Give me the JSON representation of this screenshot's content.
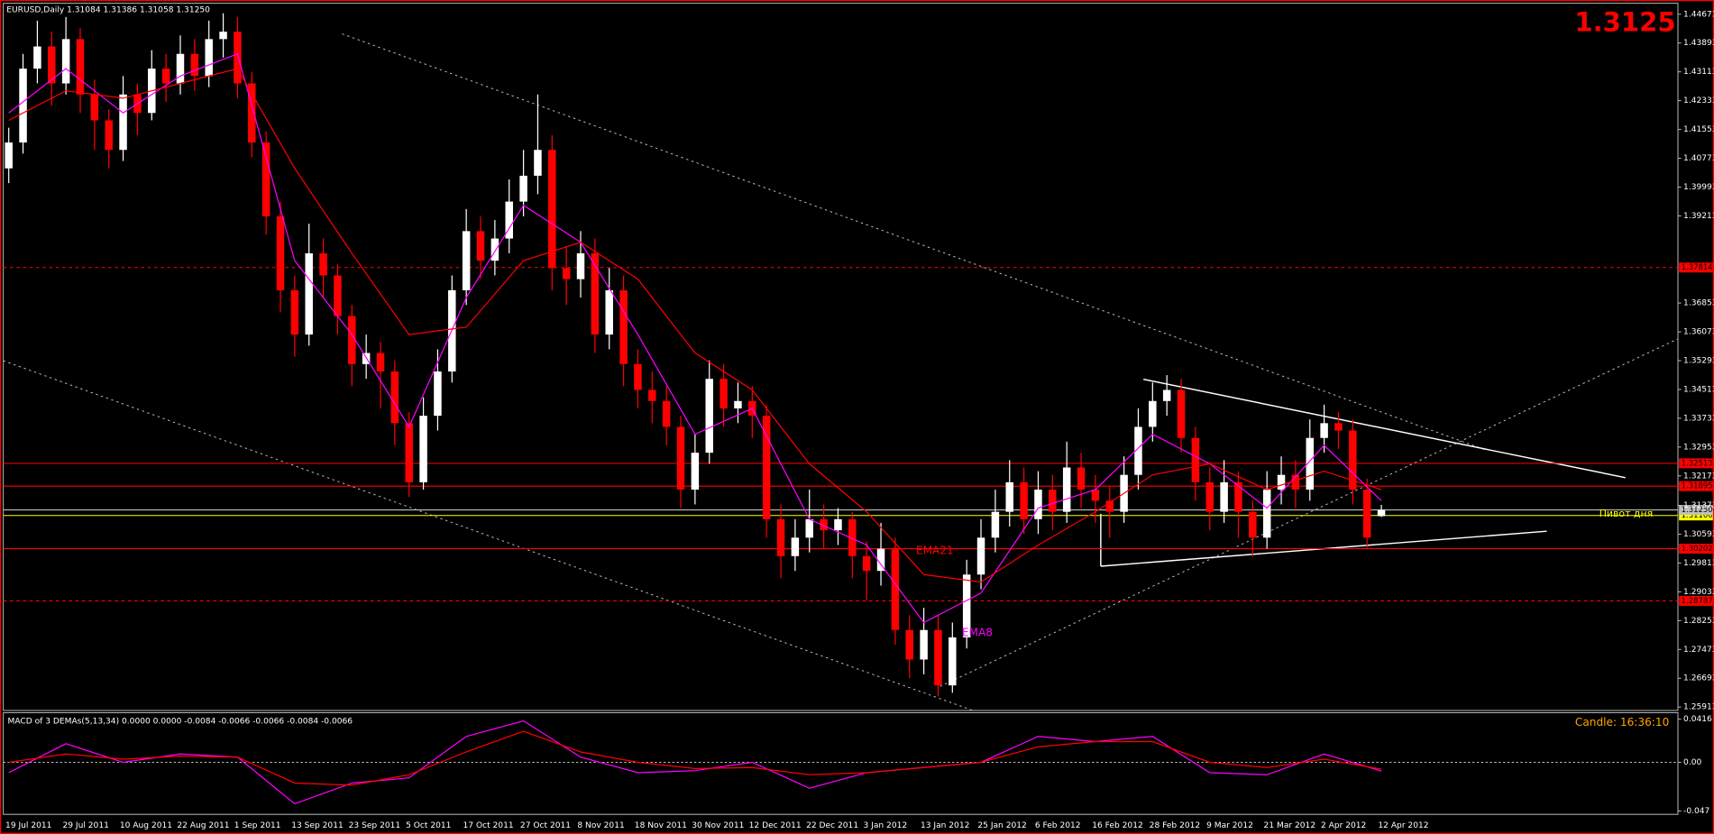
{
  "chart_data": {
    "type": "candlestick",
    "title": "EURUSD,Daily  1.31084 1.31386 1.31058 1.31250",
    "big_price": 1.3125,
    "candle_timer": "Candle:  16:36:10",
    "categories": [
      "19 Jul 2011",
      null,
      null,
      null,
      "29 Jul 2011",
      null,
      null,
      null,
      "10 Aug 2011",
      null,
      null,
      null,
      "22 Aug 2011",
      null,
      null,
      null,
      "1 Sep 2011",
      null,
      null,
      null,
      "13 Sep 2011",
      null,
      null,
      null,
      "23 Sep 2011",
      null,
      null,
      null,
      "5 Oct 2011",
      null,
      null,
      null,
      "17 Oct 2011",
      null,
      null,
      null,
      "27 Oct 2011",
      null,
      null,
      null,
      "8 Nov 2011",
      null,
      null,
      null,
      "18 Nov 2011",
      null,
      null,
      null,
      "30 Nov 2011",
      null,
      null,
      null,
      "12 Dec 2011",
      null,
      null,
      null,
      "22 Dec 2011",
      null,
      null,
      null,
      "3 Jan 2012",
      null,
      null,
      null,
      "13 Jan 2012",
      null,
      null,
      null,
      "25 Jan 2012",
      null,
      null,
      null,
      "6 Feb 2012",
      null,
      null,
      null,
      "16 Feb 2012",
      null,
      null,
      null,
      "28 Feb 2012",
      null,
      null,
      null,
      "9 Mar 2012",
      null,
      null,
      null,
      "21 Mar 2012",
      null,
      null,
      null,
      "2 Apr 2012",
      null,
      null,
      null,
      "12 Apr 2012"
    ],
    "open": [
      1.405,
      1.412,
      1.432,
      1.438,
      1.428,
      1.44,
      1.425,
      1.418,
      1.41,
      1.425,
      1.42,
      1.432,
      1.428,
      1.436,
      1.43,
      1.44,
      1.442,
      1.428,
      1.412,
      1.392,
      1.372,
      1.36,
      1.382,
      1.376,
      1.365,
      1.352,
      1.355,
      1.35,
      1.336,
      1.32,
      1.338,
      1.35,
      1.372,
      1.388,
      1.38,
      1.386,
      1.396,
      1.403,
      1.41,
      1.378,
      1.375,
      1.382,
      1.36,
      1.372,
      1.352,
      1.345,
      1.342,
      1.335,
      1.318,
      1.328,
      1.348,
      1.34,
      1.342,
      1.338,
      1.31,
      1.3,
      1.305,
      1.31,
      1.307,
      1.31,
      1.3,
      1.296,
      1.302,
      1.28,
      1.272,
      1.28,
      1.265,
      1.278,
      1.295,
      1.305,
      1.312,
      1.32,
      1.31,
      1.318,
      1.312,
      1.324,
      1.318,
      1.315,
      1.312,
      1.322,
      1.335,
      1.342,
      1.345,
      1.332,
      1.32,
      1.312,
      1.32,
      1.312,
      1.305,
      1.318,
      1.322,
      1.318,
      1.332,
      1.336,
      1.334,
      1.318,
      1.31084
    ],
    "high": [
      1.416,
      1.436,
      1.445,
      1.442,
      1.446,
      1.443,
      1.429,
      1.421,
      1.43,
      1.428,
      1.437,
      1.436,
      1.441,
      1.44,
      1.445,
      1.447,
      1.446,
      1.431,
      1.415,
      1.396,
      1.376,
      1.39,
      1.386,
      1.379,
      1.368,
      1.36,
      1.358,
      1.353,
      1.339,
      1.343,
      1.356,
      1.376,
      1.394,
      1.392,
      1.391,
      1.402,
      1.41,
      1.425,
      1.414,
      1.384,
      1.388,
      1.386,
      1.378,
      1.376,
      1.356,
      1.35,
      1.346,
      1.338,
      1.333,
      1.353,
      1.352,
      1.347,
      1.346,
      1.341,
      1.314,
      1.31,
      1.318,
      1.314,
      1.313,
      1.312,
      1.304,
      1.309,
      1.305,
      1.284,
      1.286,
      1.284,
      1.282,
      1.299,
      1.31,
      1.318,
      1.326,
      1.324,
      1.323,
      1.322,
      1.331,
      1.328,
      1.322,
      1.319,
      1.327,
      1.34,
      1.347,
      1.349,
      1.348,
      1.335,
      1.324,
      1.326,
      1.323,
      1.315,
      1.323,
      1.327,
      1.326,
      1.337,
      1.341,
      1.339,
      1.337,
      1.321,
      1.31386
    ],
    "low": [
      1.401,
      1.409,
      1.428,
      1.422,
      1.425,
      1.42,
      1.41,
      1.405,
      1.407,
      1.414,
      1.418,
      1.423,
      1.425,
      1.426,
      1.427,
      1.435,
      1.424,
      1.408,
      1.387,
      1.366,
      1.354,
      1.357,
      1.37,
      1.36,
      1.346,
      1.348,
      1.34,
      1.33,
      1.316,
      1.318,
      1.334,
      1.347,
      1.368,
      1.375,
      1.376,
      1.382,
      1.392,
      1.398,
      1.372,
      1.368,
      1.37,
      1.355,
      1.356,
      1.346,
      1.34,
      1.336,
      1.33,
      1.313,
      1.314,
      1.325,
      1.335,
      1.336,
      1.332,
      1.305,
      1.294,
      1.296,
      1.301,
      1.302,
      1.303,
      1.294,
      1.288,
      1.292,
      1.276,
      1.267,
      1.268,
      1.262,
      1.263,
      1.275,
      1.291,
      1.301,
      1.308,
      1.306,
      1.306,
      1.307,
      1.309,
      1.313,
      1.309,
      1.305,
      1.309,
      1.318,
      1.331,
      1.338,
      1.328,
      1.315,
      1.307,
      1.309,
      1.305,
      1.3,
      1.302,
      1.314,
      1.313,
      1.315,
      1.328,
      1.329,
      1.314,
      1.302,
      1.31058
    ],
    "close": [
      1.412,
      1.432,
      1.438,
      1.428,
      1.44,
      1.425,
      1.418,
      1.41,
      1.425,
      1.42,
      1.432,
      1.428,
      1.436,
      1.43,
      1.44,
      1.442,
      1.428,
      1.412,
      1.392,
      1.372,
      1.36,
      1.382,
      1.376,
      1.365,
      1.352,
      1.355,
      1.35,
      1.336,
      1.32,
      1.338,
      1.35,
      1.372,
      1.388,
      1.38,
      1.386,
      1.396,
      1.403,
      1.41,
      1.378,
      1.375,
      1.382,
      1.36,
      1.372,
      1.352,
      1.345,
      1.342,
      1.335,
      1.318,
      1.328,
      1.348,
      1.34,
      1.342,
      1.338,
      1.31,
      1.3,
      1.305,
      1.31,
      1.307,
      1.31,
      1.3,
      1.296,
      1.302,
      1.28,
      1.272,
      1.28,
      1.265,
      1.278,
      1.295,
      1.305,
      1.312,
      1.32,
      1.31,
      1.318,
      1.312,
      1.324,
      1.318,
      1.315,
      1.312,
      1.322,
      1.335,
      1.342,
      1.345,
      1.332,
      1.32,
      1.312,
      1.32,
      1.312,
      1.305,
      1.318,
      1.322,
      1.318,
      1.332,
      1.336,
      1.334,
      1.318,
      1.305,
      1.3125
    ],
    "up_color": "#ffffff",
    "down_color": "#ff0000",
    "ylim": [
      1.2582,
      1.4497
    ],
    "yticks": [
      1.44673,
      1.43893,
      1.43113,
      1.42333,
      1.41553,
      1.40773,
      1.39993,
      1.39213,
      1.36853,
      1.36073,
      1.35293,
      1.34513,
      1.33733,
      1.32953,
      1.32173,
      1.31373,
      1.30593,
      1.29813,
      1.29033,
      1.28253,
      1.27473,
      1.26693,
      1.25913
    ],
    "overlays": [
      {
        "name": "EMA8",
        "color": "#ff00ff",
        "x": [
          0,
          4,
          8,
          12,
          16,
          20,
          24,
          28,
          32,
          36,
          40,
          44,
          48,
          52,
          56,
          60,
          64,
          68,
          72,
          76,
          80,
          84,
          88,
          92,
          96
        ],
        "values": [
          1.42,
          1.432,
          1.42,
          1.43,
          1.436,
          1.38,
          1.36,
          1.335,
          1.37,
          1.395,
          1.385,
          1.36,
          1.333,
          1.34,
          1.31,
          1.303,
          1.282,
          1.29,
          1.313,
          1.318,
          1.333,
          1.325,
          1.313,
          1.33,
          1.315
        ]
      },
      {
        "name": "EMA21",
        "color": "#ff0000",
        "x": [
          0,
          4,
          8,
          12,
          16,
          20,
          24,
          28,
          32,
          36,
          40,
          44,
          48,
          52,
          56,
          60,
          64,
          68,
          72,
          76,
          80,
          84,
          88,
          92,
          96
        ],
        "values": [
          1.418,
          1.426,
          1.424,
          1.428,
          1.432,
          1.405,
          1.382,
          1.36,
          1.362,
          1.38,
          1.385,
          1.375,
          1.355,
          1.345,
          1.325,
          1.312,
          1.295,
          1.293,
          1.303,
          1.312,
          1.322,
          1.325,
          1.318,
          1.323,
          1.318
        ]
      }
    ],
    "levels": [
      {
        "value": 1.37814,
        "label": "1.37814",
        "color": "#ff0000",
        "dashed": true
      },
      {
        "value": 1.32513,
        "label": "1.32513",
        "color": "#ff0000",
        "dashed": false
      },
      {
        "value": 1.31895,
        "label": "1.31895",
        "color": "#ff0000",
        "dashed": false
      },
      {
        "value": 1.311,
        "label": "1.31100",
        "color": "#ffff00",
        "dashed": false,
        "name": "Пивот дня"
      },
      {
        "value": 1.3125,
        "label": "1.31250",
        "color": "#c0c0c0",
        "dashed": false
      },
      {
        "value": 1.30202,
        "label": "1.30202",
        "color": "#ff0000",
        "dashed": false
      },
      {
        "value": 1.28787,
        "label": "1.28787",
        "color": "#ff0000",
        "dashed": true
      }
    ],
    "macd": {
      "title": "MACD of 3 DEMAs(5,13,34) 0.0000 0.0000 -0.0084 -0.0066 -0.0066 -0.0084 -0.0066",
      "ylim": [
        -0.0502,
        0.0479
      ],
      "yticks": [
        0.0416,
        {
          "value": 0,
          "label": "0.00"
        },
        -0.047
      ],
      "series": [
        {
          "color": "#ff00ff",
          "x": [
            0,
            4,
            8,
            12,
            16,
            20,
            24,
            28,
            32,
            36,
            40,
            44,
            48,
            52,
            56,
            60,
            64,
            68,
            72,
            76,
            80,
            84,
            88,
            92,
            96
          ],
          "values": [
            -0.01,
            0.018,
            0.0,
            0.008,
            0.005,
            -0.04,
            -0.02,
            -0.015,
            0.025,
            0.04,
            0.005,
            -0.01,
            -0.008,
            0.0,
            -0.025,
            -0.01,
            -0.005,
            0.0,
            0.025,
            0.02,
            0.025,
            -0.01,
            -0.012,
            0.008,
            -0.0084
          ]
        },
        {
          "color": "#ff0000",
          "x": [
            0,
            4,
            8,
            12,
            16,
            20,
            24,
            28,
            32,
            36,
            40,
            44,
            48,
            52,
            56,
            60,
            64,
            68,
            72,
            76,
            80,
            84,
            88,
            92,
            96
          ],
          "values": [
            0.0,
            0.008,
            0.003,
            0.006,
            0.005,
            -0.02,
            -0.022,
            -0.012,
            0.01,
            0.03,
            0.01,
            0.0,
            -0.006,
            -0.005,
            -0.012,
            -0.01,
            -0.005,
            0.0,
            0.015,
            0.02,
            0.02,
            0.0,
            -0.005,
            0.003,
            -0.0066
          ]
        }
      ]
    }
  }
}
